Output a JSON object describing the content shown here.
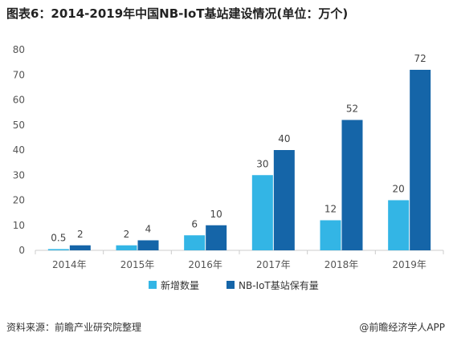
{
  "title": "图表6：2014-2019年中国NB-IoT基站建设情况(单位：万个)",
  "footer": {
    "source": "资料来源：前瞻产业研究院整理",
    "brand": "@前瞻经济学人APP"
  },
  "colors": {
    "series_new": "#33b5e5",
    "series_total": "#1565a8",
    "axis": "#cccccc"
  },
  "chart_data": {
    "type": "bar",
    "categories": [
      "2014年",
      "2015年",
      "2016年",
      "2017年",
      "2018年",
      "2019年"
    ],
    "series": [
      {
        "name": "新增数量",
        "values": [
          0.5,
          2,
          6,
          30,
          12,
          20
        ],
        "labels": [
          "0.5",
          "2",
          "6",
          "30",
          "12",
          "20"
        ]
      },
      {
        "name": "NB-IoT基站保有量",
        "values": [
          2,
          4,
          10,
          40,
          52,
          72
        ],
        "labels": [
          "2",
          "4",
          "10",
          "40",
          "52",
          "72"
        ]
      }
    ],
    "ylim": [
      0,
      80
    ],
    "yticks": [
      0,
      10,
      20,
      30,
      40,
      50,
      60,
      70,
      80
    ],
    "grid": false,
    "legend": "bottom-center"
  }
}
